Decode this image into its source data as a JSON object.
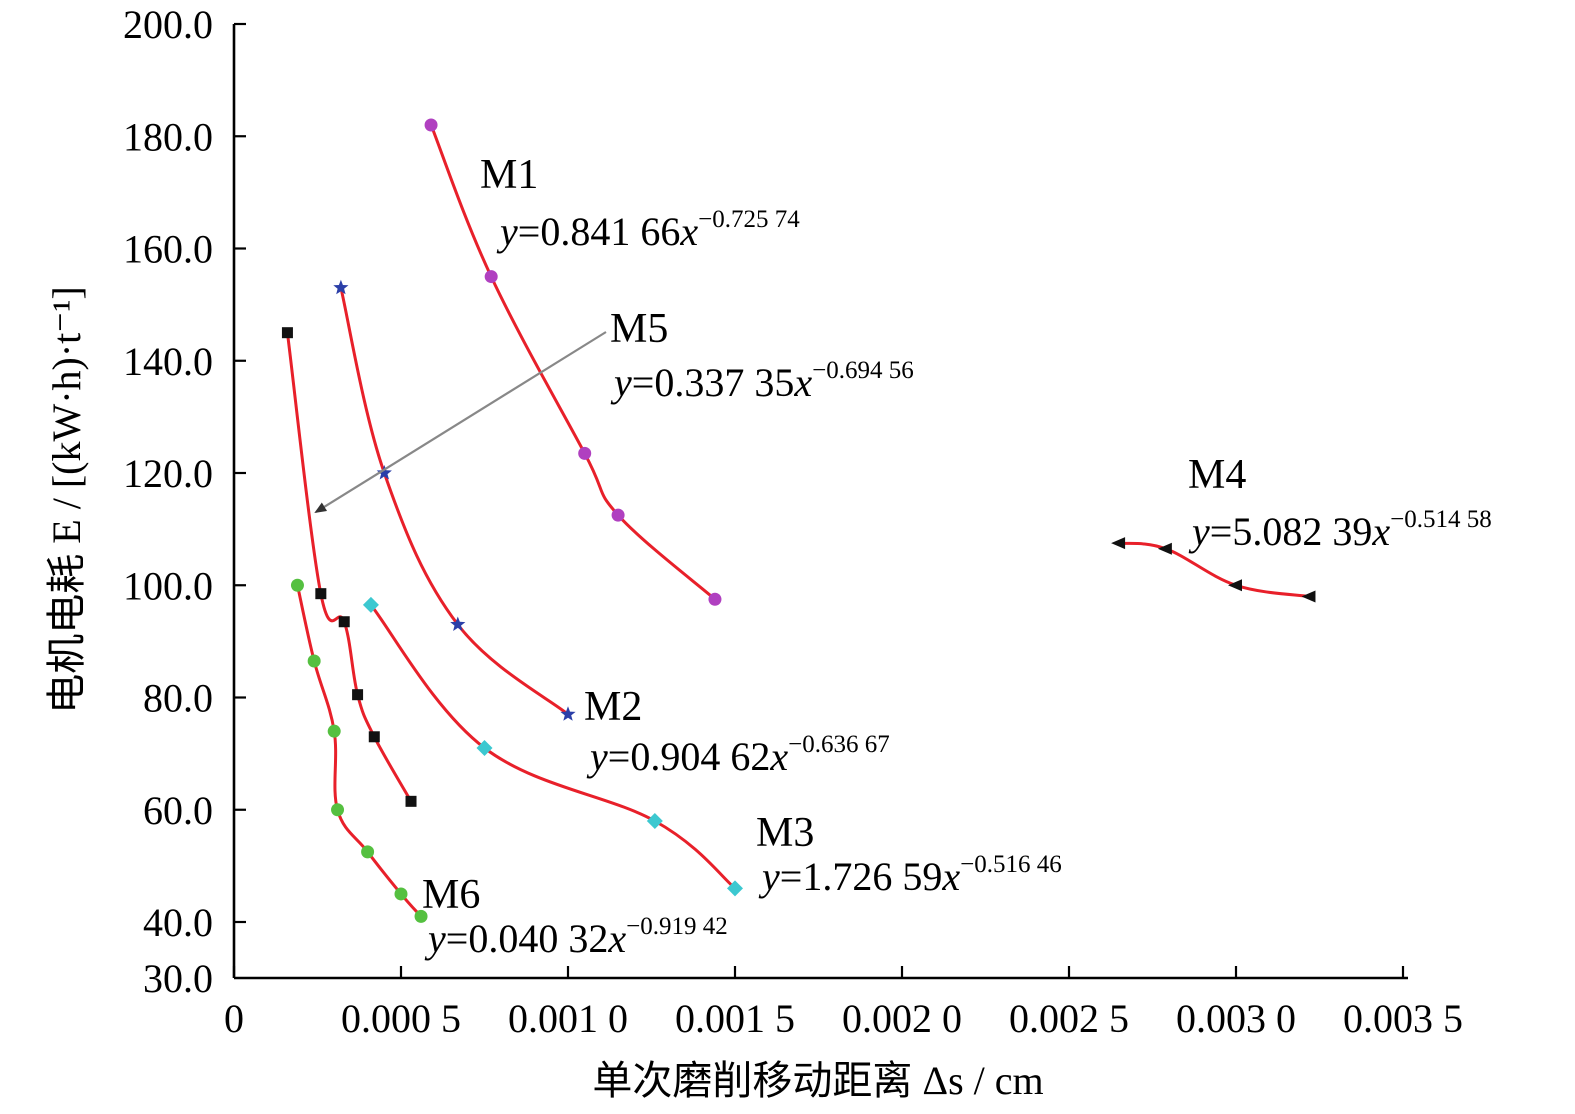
{
  "chart_data": {
    "type": "scatter",
    "title": "",
    "xlabel": "单次磨削移动距离 Δs / cm",
    "ylabel": "电机电耗 E / [(kW·h)·t⁻¹]",
    "xlim": [
      0,
      0.0035
    ],
    "ylim": [
      30,
      200
    ],
    "x_ticks": [
      0,
      0.0005,
      0.001,
      0.0015,
      0.002,
      0.0025,
      0.003,
      0.0035
    ],
    "x_tick_labels": [
      "0",
      "0.000 5",
      "0.001 0",
      "0.001 5",
      "0.002 0",
      "0.002 5",
      "0.003 0",
      "0.003 5"
    ],
    "y_ticks": [
      30,
      40,
      60,
      80,
      100,
      120,
      140,
      160,
      180,
      200
    ],
    "y_tick_labels": [
      "30.0",
      "40.0",
      "60.0",
      "80.0",
      "100.0",
      "120.0",
      "140.0",
      "160.0",
      "180.0",
      "200.0"
    ],
    "grid": false,
    "fit_color": "#e8202a",
    "series": [
      {
        "name": "M1",
        "marker": "circle",
        "color": "#b040c0",
        "points": [
          [
            0.00059,
            182
          ],
          [
            0.00077,
            155
          ],
          [
            0.00105,
            123.5
          ],
          [
            0.00115,
            112.5
          ],
          [
            0.00144,
            97.5
          ]
        ],
        "equation": {
          "coef": "0.841 66",
          "exp": "−0.725 74"
        }
      },
      {
        "name": "M2",
        "marker": "star",
        "color": "#2b3fa8",
        "points": [
          [
            0.00032,
            153
          ],
          [
            0.00045,
            120
          ],
          [
            0.00067,
            93
          ],
          [
            0.001,
            77
          ]
        ],
        "equation": {
          "coef": "0.904 62",
          "exp": "−0.636 67"
        }
      },
      {
        "name": "M3",
        "marker": "diamond",
        "color": "#3cc8d0",
        "points": [
          [
            0.00041,
            96.5
          ],
          [
            0.00075,
            71
          ],
          [
            0.00126,
            58
          ],
          [
            0.0015,
            46
          ]
        ],
        "equation": {
          "coef": "1.726 59",
          "exp": "−0.516 46"
        }
      },
      {
        "name": "M4",
        "marker": "triangle-left",
        "color": "#111111",
        "points": [
          [
            0.00265,
            107.5
          ],
          [
            0.00279,
            106.5
          ],
          [
            0.003,
            100
          ],
          [
            0.00322,
            98
          ]
        ],
        "equation": {
          "coef": "5.082 39",
          "exp": "−0.514 58"
        }
      },
      {
        "name": "M5",
        "marker": "square",
        "color": "#111111",
        "points": [
          [
            0.00016,
            145
          ],
          [
            0.00026,
            98.5
          ],
          [
            0.00033,
            93.5
          ],
          [
            0.00037,
            80.5
          ],
          [
            0.00042,
            73
          ],
          [
            0.00053,
            61.5
          ]
        ],
        "equation": {
          "coef": "0.337 35",
          "exp": "−0.694 56"
        }
      },
      {
        "name": "M6",
        "marker": "circle",
        "color": "#55c040",
        "points": [
          [
            0.00019,
            100
          ],
          [
            0.00024,
            86.5
          ],
          [
            0.0003,
            74
          ],
          [
            0.00031,
            60
          ],
          [
            0.0004,
            52.5
          ],
          [
            0.0005,
            45
          ],
          [
            0.00056,
            41
          ]
        ],
        "equation": {
          "coef": "0.040 32",
          "exp": "−0.919 42"
        }
      }
    ]
  }
}
